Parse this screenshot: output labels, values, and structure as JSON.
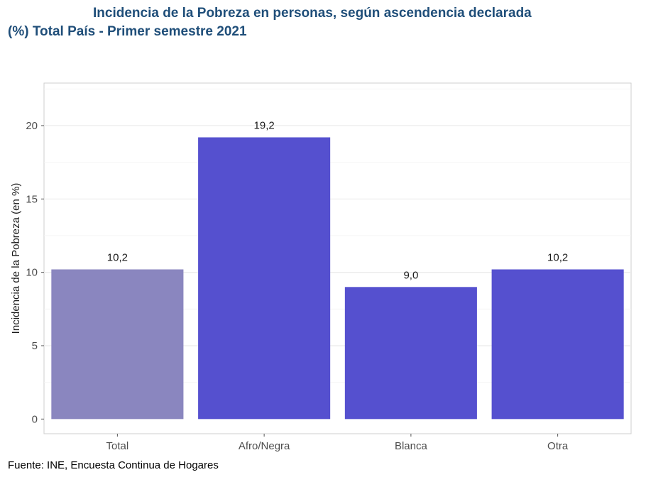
{
  "title": {
    "line1": "Incidencia de la Pobreza en personas, según ascendencia declarada",
    "line2": "(%) Total País - Primer semestre 2021"
  },
  "source": "Fuente: INE, Encuesta Continua de Hogares",
  "chart_data": {
    "type": "bar",
    "categories": [
      "Total",
      "Afro/Negra",
      "Blanca",
      "Otra"
    ],
    "values": [
      10.2,
      19.2,
      9.0,
      10.2
    ],
    "value_labels": [
      "10,2",
      "19,2",
      "9,0",
      "10,2"
    ],
    "ylabel": "Incidencia de la Pobreza (en %)",
    "xlabel": "",
    "ylim": [
      -1,
      22.9
    ],
    "yticks": [
      0,
      5,
      10,
      15,
      20
    ],
    "grid": true,
    "colors": [
      "#8a86bf",
      "#5550cf",
      "#5550cf",
      "#5550cf"
    ]
  }
}
